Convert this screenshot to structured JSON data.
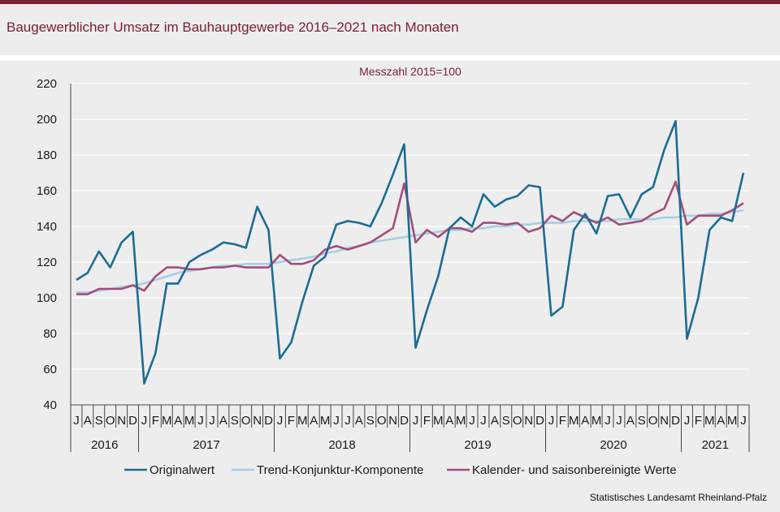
{
  "title": "Baugewerblicher Umsatz im Bauhauptgewerbe 2016–2021 nach Monaten",
  "source": "Statistisches Landesamt Rheinland-Pfalz",
  "chart_data": {
    "type": "line",
    "subtitle": "Messzahl 2015=100",
    "ylim": [
      40,
      220
    ],
    "yticks": [
      40,
      60,
      80,
      100,
      120,
      140,
      160,
      180,
      200,
      220
    ],
    "grid": true,
    "legend_position": "bottom",
    "month_labels": [
      "J",
      "A",
      "S",
      "O",
      "N",
      "D",
      "J",
      "F",
      "M",
      "A",
      "M",
      "J",
      "J",
      "A",
      "S",
      "O",
      "N",
      "D",
      "J",
      "F",
      "M",
      "A",
      "M",
      "J",
      "J",
      "A",
      "S",
      "O",
      "N",
      "D",
      "J",
      "F",
      "M",
      "A",
      "M",
      "J",
      "J",
      "A",
      "S",
      "O",
      "N",
      "D",
      "J",
      "F",
      "M",
      "A",
      "M",
      "J",
      "J",
      "A",
      "S",
      "O",
      "N",
      "D",
      "J",
      "F",
      "M",
      "A",
      "M",
      "J"
    ],
    "years": [
      {
        "label": "2016",
        "months": 6
      },
      {
        "label": "2017",
        "months": 12
      },
      {
        "label": "2018",
        "months": 12
      },
      {
        "label": "2019",
        "months": 12
      },
      {
        "label": "2020",
        "months": 12
      },
      {
        "label": "2021",
        "months": 6
      }
    ],
    "series": [
      {
        "name": "Originalwert",
        "color": "#1b6c95",
        "values": [
          110,
          114,
          126,
          117,
          131,
          137,
          52,
          69,
          108,
          108,
          120,
          124,
          127,
          131,
          130,
          128,
          151,
          138,
          66,
          75,
          98,
          118,
          123,
          141,
          143,
          142,
          140,
          153,
          169,
          186,
          72,
          93,
          112,
          139,
          145,
          140,
          158,
          151,
          155,
          157,
          163,
          162,
          90,
          95,
          138,
          147,
          136,
          157,
          158,
          145,
          158,
          162,
          183,
          199,
          77,
          100,
          138,
          145,
          143,
          170
        ]
      },
      {
        "name": "Trend-Konjunktur-Komponente",
        "color": "#a6cfe3",
        "values": [
          103,
          103,
          104,
          105,
          106,
          107,
          108,
          110,
          112,
          114,
          115,
          116,
          117,
          118,
          118,
          119,
          119,
          119,
          120,
          121,
          122,
          123,
          125,
          126,
          128,
          129,
          131,
          132,
          133,
          134,
          135,
          136,
          137,
          138,
          138,
          139,
          139,
          140,
          140,
          141,
          141,
          142,
          142,
          142,
          143,
          143,
          143,
          143,
          144,
          144,
          144,
          144,
          145,
          145,
          146,
          146,
          147,
          147,
          148,
          149
        ]
      },
      {
        "name": "Kalender- und saisonbereinigte Werte",
        "color": "#a24d7c",
        "values": [
          102,
          102,
          105,
          105,
          105,
          107,
          104,
          112,
          117,
          117,
          116,
          116,
          117,
          117,
          118,
          117,
          117,
          117,
          124,
          119,
          119,
          121,
          127,
          129,
          127,
          129,
          131,
          135,
          139,
          164,
          131,
          138,
          134,
          139,
          139,
          137,
          142,
          142,
          141,
          142,
          137,
          139,
          146,
          143,
          148,
          145,
          142,
          145,
          141,
          142,
          143,
          147,
          150,
          165,
          141,
          146,
          146,
          146,
          149,
          153
        ]
      }
    ]
  }
}
